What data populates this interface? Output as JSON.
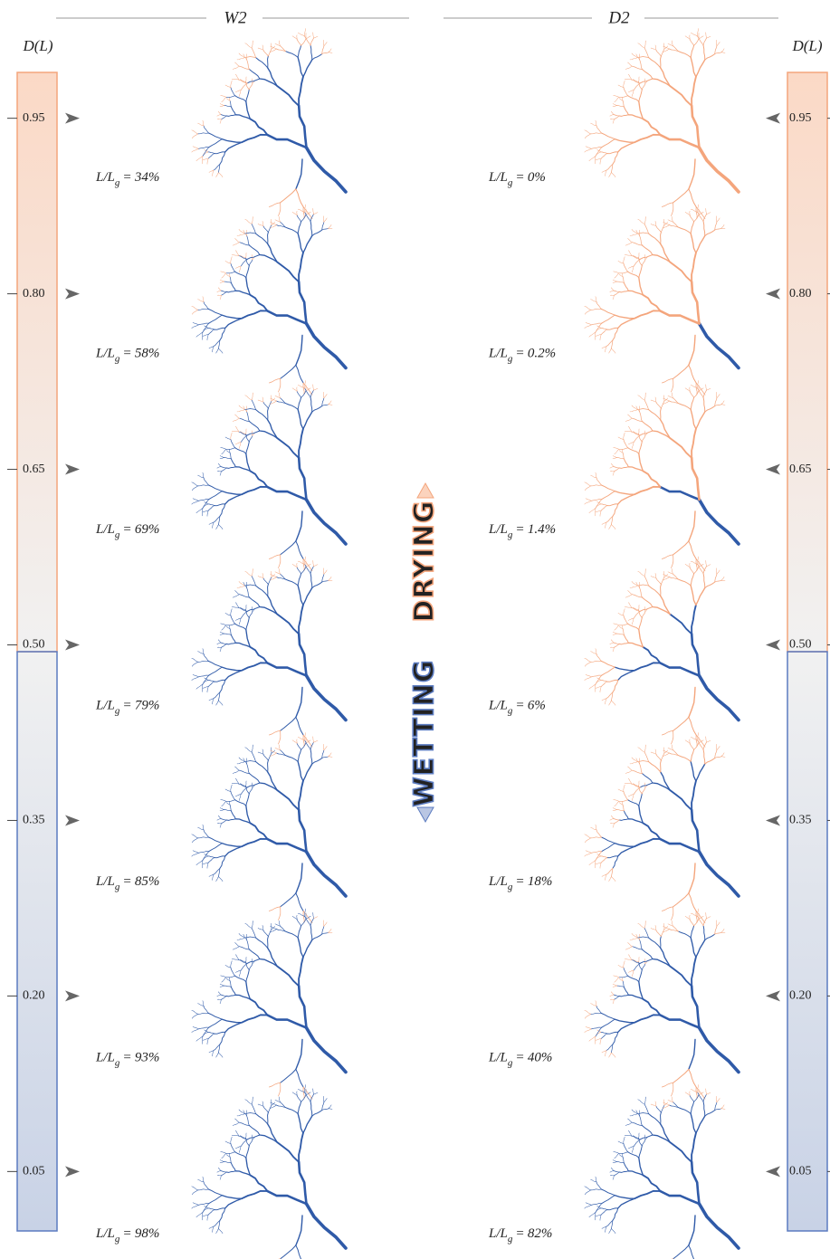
{
  "columns": [
    {
      "title": "W2",
      "ratios": [
        34,
        58,
        69,
        79,
        85,
        93,
        98
      ],
      "ratio_labels": [
        "34%",
        "58%",
        "69%",
        "79%",
        "85%",
        "93%",
        "98%"
      ]
    },
    {
      "title": "D2",
      "ratios": [
        0,
        0.2,
        1.4,
        6,
        18,
        40,
        82
      ],
      "ratio_labels": [
        "0%",
        "0.2%",
        "1.4%",
        "6%",
        "18%",
        "40%",
        "82%"
      ]
    }
  ],
  "ratio_text": {
    "numerator": "L/L",
    "subscript": "g",
    "equals": "="
  },
  "colorbar": {
    "label": "D(L)",
    "ylim": [
      0,
      1
    ],
    "ticks": [
      0.95,
      {
        "value": 0.8,
        "label": "0.80"
      },
      0.65,
      {
        "value": 0.5,
        "label": "0.50"
      },
      0.35,
      {
        "value": 0.2,
        "label": "0.20"
      },
      0.05
    ]
  },
  "direction_labels": {
    "wetting": "WETTING",
    "drying": "DRYING"
  }
}
